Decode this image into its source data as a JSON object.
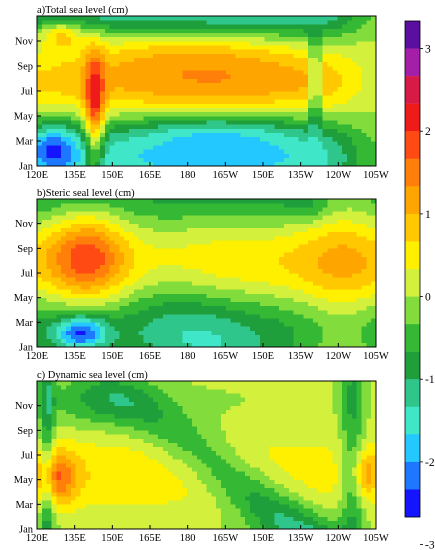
{
  "chart_data": {
    "type": "heatmap",
    "colorbar": {
      "ticks": [
        "3",
        "2",
        "1",
        "0",
        "-1",
        "-2",
        "-3"
      ],
      "colors": [
        "#5a0fa0",
        "#a51ea8",
        "#d81b46",
        "#ef1b1b",
        "#ff4a14",
        "#ff7f0a",
        "#ffa500",
        "#ffc800",
        "#fff000",
        "#d2f03c",
        "#82dc3c",
        "#35b935",
        "#1f9f3c",
        "#2fc68c",
        "#3fe6c8",
        "#22c8ff",
        "#1e78ff",
        "#1414ff"
      ]
    },
    "panels": [
      {
        "title": "a)Total sea level (cm)",
        "x_tick_labels": [
          "120E",
          "135E",
          "150E",
          "165E",
          "180",
          "165W",
          "150E",
          "135W",
          "120W",
          "105W"
        ],
        "y_tick_labels": [
          "Jan",
          "Mar",
          "May",
          "Jul",
          "Sep",
          "Nov"
        ]
      },
      {
        "title": "b)Steric seal level (cm)",
        "x_tick_labels": [
          "120E",
          "135E",
          "150E",
          "165E",
          "180",
          "165W",
          "150E",
          "135W",
          "120W",
          "105W"
        ],
        "y_tick_labels": [
          "Jan",
          "Mar",
          "May",
          "Jul",
          "Sep",
          "Nov"
        ]
      },
      {
        "title": "c) Dynamic sea level (cm)",
        "x_tick_labels": [
          "120E",
          "135E",
          "150E",
          "165E",
          "180",
          "165W",
          "150E",
          "135W",
          "120W",
          "105W"
        ],
        "y_tick_labels": [
          "Jan",
          "Mar",
          "May",
          "Jul",
          "Sep",
          "Nov"
        ]
      }
    ]
  }
}
